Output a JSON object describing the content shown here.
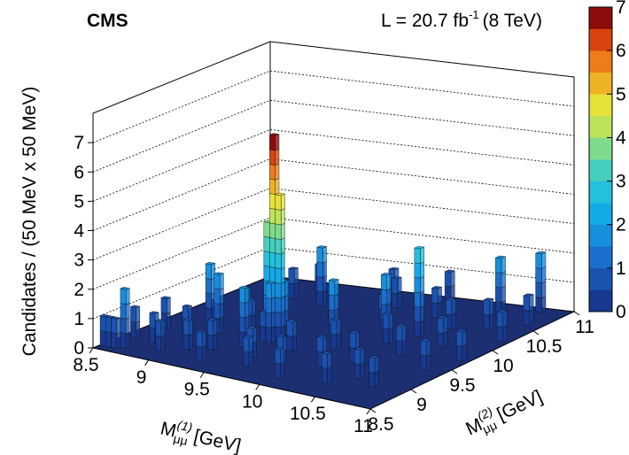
{
  "chart_data": {
    "type": "lego",
    "title": "CMS",
    "lumi": {
      "text": "L = 20.7 fb",
      "sup": "-1",
      "energy": "(8 TeV)"
    },
    "zlabel": "Candidates / (50 MeV x 50 MeV)",
    "xlabel": {
      "main": "M",
      "sup": "(1)",
      "sub": "μμ",
      "unit": "[GeV]"
    },
    "ylabel": {
      "main": "M",
      "sup": "(2)",
      "sub": "μμ",
      "unit": "[GeV]"
    },
    "xlim": [
      8.5,
      11
    ],
    "xticks": [
      8.5,
      9,
      9.5,
      10,
      10.5,
      11
    ],
    "ylim": [
      8.5,
      11
    ],
    "yticks": [
      8.5,
      9,
      9.5,
      10,
      10.5,
      11
    ],
    "zlim": [
      0,
      8
    ],
    "zticks": [
      0,
      1,
      2,
      3,
      4,
      5,
      6,
      7
    ],
    "colorbar_lim": [
      0,
      7
    ],
    "colorbar_ticks": [
      0,
      1,
      2,
      3,
      4,
      5,
      6,
      7
    ],
    "palette": [
      "#17398f",
      "#1a52b0",
      "#1b6fcc",
      "#168fdd",
      "#13aae6",
      "#24c0dc",
      "#45cfbd",
      "#7fdb8c",
      "#bce35a",
      "#e6e23a",
      "#eeb325",
      "#ee7c1a",
      "#d9430f",
      "#8e0b0b"
    ],
    "bin_width": 0.05,
    "bars": [
      {
        "x": 8.5,
        "y": 8.6,
        "value": 1
      },
      {
        "x": 8.55,
        "y": 8.6,
        "value": 1
      },
      {
        "x": 8.6,
        "y": 8.6,
        "value": 1
      },
      {
        "x": 8.65,
        "y": 8.65,
        "value": 2
      },
      {
        "x": 8.55,
        "y": 8.95,
        "value": 1
      },
      {
        "x": 8.6,
        "y": 9.3,
        "value": 1
      },
      {
        "x": 8.75,
        "y": 8.9,
        "value": 1
      },
      {
        "x": 8.8,
        "y": 9.6,
        "value": 2
      },
      {
        "x": 8.85,
        "y": 9.2,
        "value": 1
      },
      {
        "x": 8.9,
        "y": 8.75,
        "value": 1
      },
      {
        "x": 8.95,
        "y": 9.85,
        "value": 1
      },
      {
        "x": 9.0,
        "y": 9.4,
        "value": 2
      },
      {
        "x": 9.05,
        "y": 8.9,
        "value": 1
      },
      {
        "x": 9.1,
        "y": 10.1,
        "value": 1
      },
      {
        "x": 9.15,
        "y": 9.6,
        "value": 1
      },
      {
        "x": 9.2,
        "y": 9.0,
        "value": 1
      },
      {
        "x": 9.25,
        "y": 10.4,
        "value": 2
      },
      {
        "x": 9.3,
        "y": 8.7,
        "value": 1
      },
      {
        "x": 9.3,
        "y": 9.8,
        "value": 1
      },
      {
        "x": 9.35,
        "y": 9.2,
        "value": 2
      },
      {
        "x": 9.4,
        "y": 9.45,
        "value": 4
      },
      {
        "x": 9.45,
        "y": 9.45,
        "value": 7
      },
      {
        "x": 9.5,
        "y": 9.45,
        "value": 5
      },
      {
        "x": 9.45,
        "y": 9.5,
        "value": 3
      },
      {
        "x": 9.45,
        "y": 9.4,
        "value": 2
      },
      {
        "x": 9.5,
        "y": 9.5,
        "value": 2
      },
      {
        "x": 9.4,
        "y": 9.4,
        "value": 1
      },
      {
        "x": 9.55,
        "y": 9.0,
        "value": 1
      },
      {
        "x": 9.6,
        "y": 10.0,
        "value": 1
      },
      {
        "x": 9.65,
        "y": 8.8,
        "value": 1
      },
      {
        "x": 9.7,
        "y": 9.3,
        "value": 1
      },
      {
        "x": 9.75,
        "y": 10.6,
        "value": 1
      },
      {
        "x": 9.8,
        "y": 9.7,
        "value": 2
      },
      {
        "x": 9.85,
        "y": 8.95,
        "value": 1
      },
      {
        "x": 9.9,
        "y": 10.2,
        "value": 1
      },
      {
        "x": 9.95,
        "y": 9.5,
        "value": 1
      },
      {
        "x": 10.0,
        "y": 8.7,
        "value": 1
      },
      {
        "x": 10.05,
        "y": 10.0,
        "value": 2
      },
      {
        "x": 10.1,
        "y": 9.1,
        "value": 1
      },
      {
        "x": 10.15,
        "y": 10.5,
        "value": 1
      },
      {
        "x": 10.2,
        "y": 9.8,
        "value": 1
      },
      {
        "x": 10.25,
        "y": 9.3,
        "value": 1
      },
      {
        "x": 10.3,
        "y": 10.05,
        "value": 3
      },
      {
        "x": 10.35,
        "y": 8.8,
        "value": 1
      },
      {
        "x": 10.4,
        "y": 10.3,
        "value": 1
      },
      {
        "x": 10.45,
        "y": 9.6,
        "value": 1
      },
      {
        "x": 10.5,
        "y": 9.0,
        "value": 1
      },
      {
        "x": 10.55,
        "y": 10.7,
        "value": 2
      },
      {
        "x": 10.6,
        "y": 9.9,
        "value": 1
      },
      {
        "x": 10.65,
        "y": 10.4,
        "value": 1
      },
      {
        "x": 10.7,
        "y": 8.9,
        "value": 1
      },
      {
        "x": 10.75,
        "y": 10.9,
        "value": 2
      },
      {
        "x": 10.8,
        "y": 9.4,
        "value": 1
      },
      {
        "x": 10.85,
        "y": 10.6,
        "value": 1
      },
      {
        "x": 10.9,
        "y": 9.7,
        "value": 1
      },
      {
        "x": 10.9,
        "y": 10.2,
        "value": 1
      },
      {
        "x": 9.05,
        "y": 10.7,
        "value": 1
      },
      {
        "x": 8.95,
        "y": 10.5,
        "value": 1
      },
      {
        "x": 9.6,
        "y": 10.8,
        "value": 1
      },
      {
        "x": 10.0,
        "y": 10.9,
        "value": 1
      }
    ]
  }
}
